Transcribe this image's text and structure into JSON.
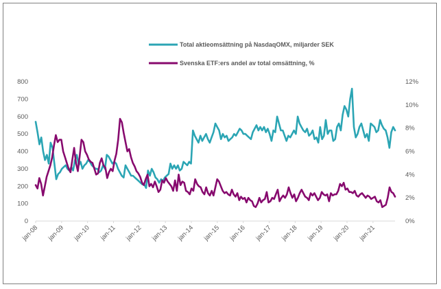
{
  "chart_data": {
    "type": "line",
    "title": "",
    "xlabel": "",
    "ylabel": "",
    "y2label": "",
    "legend_position": "top-center",
    "grid": false,
    "x_tick_labels": [
      "jan-08",
      "jan-09",
      "jan-10",
      "jan-11",
      "jan-12",
      "jan-13",
      "jan-14",
      "jan-15",
      "jan-16",
      "jan-17",
      "jan-18",
      "jan-19",
      "jan-20",
      "jan-21"
    ],
    "y_left": {
      "ylim": [
        0,
        800
      ],
      "ticks": [
        "0",
        "100",
        "200",
        "300",
        "400",
        "500",
        "600",
        "700",
        "800"
      ]
    },
    "y_right": {
      "ylim": [
        0,
        12
      ],
      "ticks": [
        "0%",
        "2%",
        "4%",
        "6%",
        "8%",
        "10%",
        "12%"
      ]
    },
    "series": [
      {
        "name": "Total aktieomsättning på NasdaqOMX, miljarder SEK",
        "color": "#2ba5b4",
        "axis": "left",
        "values": [
          570,
          510,
          440,
          480,
          400,
          350,
          380,
          330,
          450,
          420,
          330,
          240,
          270,
          280,
          300,
          310,
          320,
          300,
          290,
          310,
          290,
          350,
          380,
          320,
          340,
          300,
          320,
          330,
          350,
          340,
          320,
          310,
          300,
          300,
          280,
          290,
          320,
          300,
          380,
          370,
          350,
          330,
          340,
          330,
          300,
          280,
          260,
          250,
          320,
          300,
          280,
          260,
          260,
          250,
          240,
          230,
          220,
          210,
          210,
          190,
          290,
          260,
          300,
          280,
          250,
          240,
          220,
          240,
          230,
          250,
          260,
          270,
          330,
          300,
          320,
          300,
          320,
          290,
          300,
          340,
          330,
          320,
          340,
          330,
          520,
          490,
          470,
          450,
          490,
          460,
          480,
          500,
          470,
          450,
          480,
          510,
          560,
          540,
          520,
          470,
          500,
          480,
          490,
          460,
          470,
          480,
          500,
          490,
          510,
          530,
          520,
          500,
          500,
          490,
          480,
          470,
          510,
          530,
          550,
          520,
          540,
          520,
          540,
          510,
          530,
          500,
          460,
          520,
          510,
          600,
          560,
          520,
          520,
          490,
          460,
          490,
          480,
          500,
          520,
          500,
          600,
          560,
          540,
          520,
          510,
          530,
          490,
          500,
          520,
          470,
          480,
          450,
          540,
          470,
          490,
          580,
          500,
          520,
          520,
          460,
          470,
          540,
          560,
          520,
          610,
          660,
          640,
          600,
          700,
          760,
          540,
          480,
          500,
          540,
          560,
          520,
          480,
          500,
          460,
          560,
          550,
          540,
          510,
          520,
          580,
          550,
          530,
          520,
          480,
          420,
          510,
          540,
          520
        ],
        "note_samples": "monthly"
      },
      {
        "name": "Svenska ETF:ers andel av total omsättning, %",
        "color": "#870a6e",
        "axis": "right",
        "values": [
          3.1,
          2.8,
          3.7,
          3.2,
          2.2,
          3.0,
          3.8,
          4.3,
          4.8,
          5.5,
          6.5,
          7.4,
          6.8,
          7.0,
          7.0,
          6.0,
          5.5,
          5.0,
          4.5,
          4.2,
          5.3,
          6.3,
          5.0,
          4.3,
          5.6,
          7.0,
          6.8,
          6.0,
          5.7,
          5.3,
          5.1,
          5.0,
          4.5,
          4.0,
          4.1,
          5.0,
          5.4,
          4.8,
          4.6,
          3.7,
          4.2,
          4.5,
          4.3,
          5.2,
          5.8,
          7.0,
          8.8,
          8.5,
          7.6,
          6.8,
          6.0,
          6.2,
          5.5,
          5.0,
          4.7,
          4.3,
          4.1,
          3.8,
          3.3,
          3.1,
          3.6,
          4.0,
          3.0,
          3.2,
          2.9,
          3.4,
          3.0,
          2.5,
          2.7,
          3.5,
          3.3,
          3.7,
          3.4,
          3.2,
          3.0,
          2.6,
          3.5,
          2.6,
          4.0,
          3.1,
          3.4,
          3.3,
          2.6,
          2.5,
          2.3,
          2.8,
          2.6,
          3.6,
          3.2,
          3.0,
          2.9,
          2.5,
          2.3,
          2.9,
          2.4,
          2.2,
          2.6,
          2.2,
          2.9,
          3.6,
          3.4,
          3.0,
          2.6,
          2.4,
          2.5,
          2.3,
          2.2,
          2.7,
          2.3,
          2.1,
          2.4,
          1.8,
          2.1,
          1.9,
          2.0,
          1.6,
          2.0,
          1.8,
          1.7,
          1.3,
          1.2,
          1.5,
          2.0,
          1.6,
          1.8,
          1.9,
          2.5,
          1.6,
          1.7,
          2.0,
          1.9,
          2.3,
          2.7,
          1.7,
          2.0,
          2.2,
          2.0,
          2.3,
          2.9,
          2.4,
          2.0,
          2.3,
          1.7,
          2.0,
          2.4,
          2.7,
          2.4,
          2.1,
          2.0,
          1.8,
          2.4,
          2.2,
          2.4,
          2.1,
          1.8,
          2.0,
          2.5,
          2.3,
          2.2,
          2.3,
          1.7,
          2.4,
          2.2,
          2.3,
          2.3,
          2.6,
          3.2,
          3.0,
          3.3,
          2.7,
          2.8,
          2.5,
          2.5,
          2.4,
          2.6,
          2.2,
          2.1,
          2.3,
          2.4,
          2.2,
          2.0,
          2.2,
          2.1,
          1.9,
          2.0,
          2.1,
          1.7,
          1.6,
          1.8,
          1.2,
          1.3,
          1.4,
          2.0,
          2.9,
          2.5,
          2.4,
          2.1
        ]
      }
    ]
  }
}
